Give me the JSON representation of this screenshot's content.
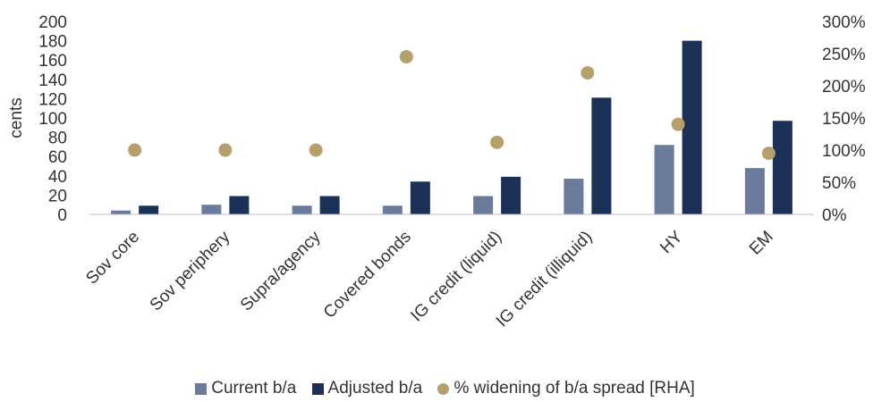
{
  "chart_data": {
    "type": "bar",
    "title": "",
    "ylabel": "cents",
    "y2label": "",
    "categories": [
      "Sov core",
      "Sov periphery",
      "Supra/agency",
      "Covered bonds",
      "IG credit (liquid)",
      "IG credit (illiquid)",
      "HY",
      "EM"
    ],
    "ylim": [
      0,
      200
    ],
    "yticks": [
      "0",
      "20",
      "40",
      "60",
      "80",
      "100",
      "120",
      "140",
      "160",
      "180",
      "200"
    ],
    "y2lim": [
      0,
      3.0
    ],
    "y2ticks": [
      "0%",
      "50%",
      "100%",
      "150%",
      "200%",
      "250%",
      "300%"
    ],
    "series": [
      {
        "name": "Current b/a",
        "type": "bar",
        "axis": "left",
        "color": "#6a7b9c",
        "values": [
          4,
          10,
          9,
          9,
          19,
          37,
          72,
          48
        ]
      },
      {
        "name": "Adjusted b/a",
        "type": "bar",
        "axis": "left",
        "color": "#1c3158",
        "values": [
          9,
          19,
          19,
          34,
          39,
          121,
          180,
          97
        ]
      },
      {
        "name": "% widening of b/a spread [RHA]",
        "type": "scatter",
        "axis": "right",
        "color": "#b5a06b",
        "values": [
          1.0,
          1.0,
          1.0,
          2.45,
          1.12,
          2.2,
          1.4,
          0.95
        ]
      }
    ],
    "grid": false,
    "legend_position": "bottom"
  }
}
